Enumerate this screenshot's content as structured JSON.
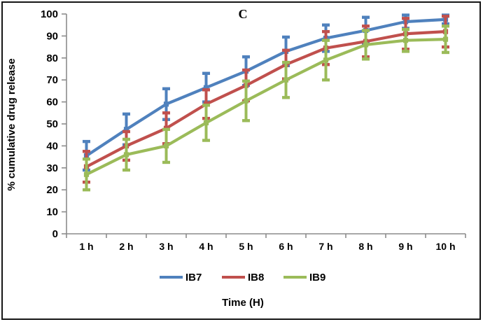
{
  "figure": {
    "background_color": "#ffffff",
    "border_color": "#161616"
  },
  "chart_data": {
    "type": "line",
    "title": "C",
    "xlabel": "Time (H)",
    "ylabel": "% cumulative drug release",
    "categories": [
      "1 h",
      "2 h",
      "3 h",
      "4 h",
      "5 h",
      "6 h",
      "7 h",
      "8 h",
      "9 h",
      "10 h"
    ],
    "series": [
      {
        "name": "IB7",
        "color": "#4F81BD",
        "values": [
          35.5,
          47.5,
          59,
          66.5,
          74,
          83,
          89,
          92.5,
          96.5,
          97.5
        ],
        "errors": [
          6.5,
          7,
          7,
          6.5,
          6.5,
          6.5,
          6,
          6,
          3,
          2
        ]
      },
      {
        "name": "IB8",
        "color": "#C0504D",
        "values": [
          30.5,
          40,
          48,
          59,
          67.5,
          77,
          84.5,
          87.5,
          91,
          92
        ],
        "errors": [
          7,
          6.5,
          7,
          6.5,
          7,
          6.5,
          7.5,
          7,
          7,
          7
        ]
      },
      {
        "name": "IB9",
        "color": "#9BBB59",
        "values": [
          27,
          36,
          40,
          50.5,
          60.5,
          70,
          79,
          86,
          88,
          88.5
        ],
        "errors": [
          7,
          7,
          7.5,
          8,
          9,
          8,
          9,
          6.5,
          5,
          6
        ]
      }
    ],
    "ylim": [
      0,
      100
    ],
    "ytick_step": 10,
    "yticks": [
      "0",
      "10",
      "20",
      "30",
      "40",
      "50",
      "60",
      "70",
      "80",
      "90",
      "100"
    ],
    "legend_position": "bottom",
    "legend_entries": [
      "IB7",
      "IB8",
      "IB9"
    ],
    "grid": false,
    "error_bars": true,
    "axis_color": "#8C8C8C"
  }
}
